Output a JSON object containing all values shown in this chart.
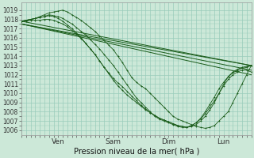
{
  "title": "Pression niveau de la mer( hPa )",
  "ylabel_values": [
    1006,
    1007,
    1008,
    1009,
    1010,
    1011,
    1012,
    1013,
    1014,
    1015,
    1016,
    1017,
    1018,
    1019
  ],
  "ylim": [
    1005.5,
    1019.8
  ],
  "xlim": [
    0,
    100
  ],
  "xtick_positions": [
    16,
    40,
    64,
    88
  ],
  "xtick_labels": [
    "Ven",
    "Sam",
    "Dim",
    "Lun"
  ],
  "background_color": "#cce8d8",
  "grid_color": "#99ccbb",
  "line_color": "#1a5c1a",
  "series": [
    [
      0,
      1017.8,
      2,
      1017.9,
      4,
      1018.0,
      6,
      1018.1,
      8,
      1018.3,
      10,
      1018.5,
      12,
      1018.7,
      14,
      1018.8,
      16,
      1018.9,
      18,
      1019.0,
      20,
      1018.8,
      22,
      1018.5,
      24,
      1018.2,
      26,
      1017.9,
      28,
      1017.5,
      30,
      1017.1,
      32,
      1016.7,
      34,
      1016.2,
      36,
      1015.7,
      38,
      1015.2,
      40,
      1014.7,
      42,
      1014.0,
      44,
      1013.3,
      46,
      1012.5,
      48,
      1011.7,
      50,
      1011.2,
      52,
      1010.8,
      54,
      1010.5,
      56,
      1010.0,
      58,
      1009.5,
      60,
      1009.0,
      62,
      1008.5,
      64,
      1008.0,
      66,
      1007.5,
      68,
      1007.2,
      70,
      1007.0,
      72,
      1006.8,
      74,
      1006.6,
      76,
      1006.4,
      78,
      1006.3,
      80,
      1006.2,
      82,
      1006.3,
      84,
      1006.5,
      86,
      1007.0,
      88,
      1007.5,
      90,
      1008.0,
      92,
      1009.0,
      94,
      1010.0,
      96,
      1011.0,
      98,
      1012.0,
      100,
      1013.0
    ],
    [
      0,
      1017.8,
      2,
      1017.9,
      4,
      1018.0,
      6,
      1018.1,
      8,
      1018.2,
      10,
      1018.3,
      12,
      1018.5,
      14,
      1018.4,
      16,
      1018.3,
      18,
      1018.1,
      20,
      1017.8,
      22,
      1017.5,
      24,
      1017.1,
      26,
      1016.7,
      28,
      1016.3,
      30,
      1015.8,
      32,
      1015.3,
      34,
      1014.8,
      36,
      1014.2,
      38,
      1013.6,
      40,
      1013.0,
      42,
      1012.3,
      44,
      1011.6,
      46,
      1010.9,
      48,
      1010.2,
      50,
      1009.5,
      52,
      1009.0,
      54,
      1008.5,
      56,
      1008.0,
      58,
      1007.5,
      60,
      1007.2,
      62,
      1007.0,
      64,
      1006.8,
      66,
      1006.6,
      68,
      1006.4,
      70,
      1006.3,
      72,
      1006.3,
      74,
      1006.5,
      76,
      1006.8,
      78,
      1007.2,
      80,
      1007.8,
      82,
      1008.5,
      84,
      1009.2,
      86,
      1010.0,
      88,
      1010.8,
      90,
      1011.5,
      92,
      1012.0,
      94,
      1012.3,
      96,
      1012.5,
      98,
      1012.5,
      100,
      1012.3
    ],
    [
      0,
      1017.8,
      2,
      1017.9,
      4,
      1018.0,
      6,
      1018.1,
      8,
      1018.2,
      10,
      1018.3,
      12,
      1018.4,
      14,
      1018.3,
      16,
      1018.1,
      18,
      1017.8,
      20,
      1017.4,
      22,
      1017.0,
      24,
      1016.5,
      26,
      1016.0,
      28,
      1015.4,
      30,
      1014.8,
      32,
      1014.2,
      34,
      1013.5,
      36,
      1012.8,
      38,
      1012.2,
      40,
      1011.6,
      42,
      1011.1,
      44,
      1010.7,
      46,
      1010.2,
      48,
      1009.7,
      50,
      1009.2,
      52,
      1008.7,
      54,
      1008.3,
      56,
      1007.9,
      58,
      1007.6,
      60,
      1007.3,
      62,
      1007.1,
      64,
      1006.9,
      66,
      1006.7,
      68,
      1006.5,
      70,
      1006.4,
      72,
      1006.3,
      74,
      1006.4,
      76,
      1006.6,
      78,
      1007.0,
      80,
      1007.5,
      82,
      1008.2,
      84,
      1009.0,
      86,
      1010.0,
      88,
      1011.0,
      90,
      1011.8,
      92,
      1012.3,
      94,
      1012.6,
      96,
      1012.8,
      98,
      1012.9,
      100,
      1013.0
    ],
    [
      0,
      1017.8,
      2,
      1017.8,
      4,
      1017.9,
      6,
      1017.9,
      8,
      1017.9,
      10,
      1018.0,
      12,
      1018.0,
      14,
      1017.9,
      16,
      1017.7,
      18,
      1017.5,
      20,
      1017.2,
      22,
      1016.8,
      24,
      1016.4,
      26,
      1015.9,
      28,
      1015.4,
      30,
      1014.8,
      32,
      1014.2,
      34,
      1013.5,
      36,
      1012.8,
      38,
      1012.1,
      40,
      1011.4,
      42,
      1010.8,
      44,
      1010.3,
      46,
      1009.8,
      48,
      1009.4,
      50,
      1009.0,
      52,
      1008.6,
      54,
      1008.2,
      56,
      1007.9,
      58,
      1007.6,
      60,
      1007.3,
      62,
      1007.1,
      64,
      1006.9,
      66,
      1006.7,
      68,
      1006.5,
      70,
      1006.4,
      72,
      1006.3,
      74,
      1006.5,
      76,
      1006.8,
      78,
      1007.3,
      80,
      1008.0,
      82,
      1008.8,
      84,
      1009.6,
      86,
      1010.5,
      88,
      1011.2,
      90,
      1011.8,
      92,
      1012.2,
      94,
      1012.5,
      96,
      1012.7,
      98,
      1012.8,
      100,
      1013.0
    ],
    [
      0,
      1017.5,
      100,
      1013.0
    ],
    [
      0,
      1017.5,
      100,
      1012.5
    ],
    [
      0,
      1017.5,
      100,
      1012.0
    ],
    [
      0,
      1017.8,
      100,
      1013.0
    ]
  ],
  "dotted_indices": [
    0,
    1,
    2,
    3
  ],
  "line_indices": [
    4,
    5,
    6,
    7
  ]
}
